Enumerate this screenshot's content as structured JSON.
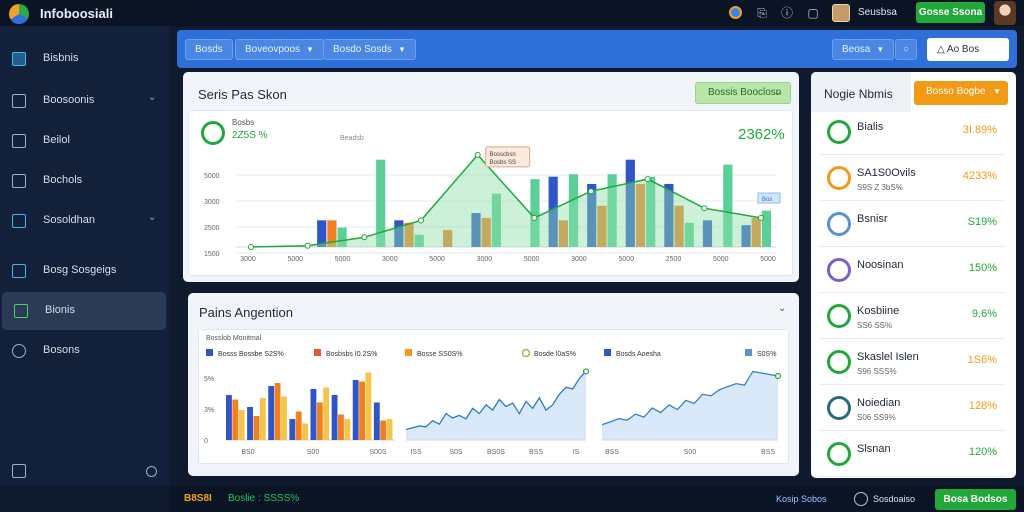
{
  "app": {
    "title": "Infoboosiali",
    "user_name": "Seusbsa",
    "cta_label": "Gosse Ssona"
  },
  "topbar": {
    "icons": [
      "notification-icon",
      "share-icon",
      "help-icon"
    ]
  },
  "sidebar": {
    "items": [
      {
        "label": "Bisbnis",
        "icon": "dashboard-icon",
        "active": false,
        "chevron": false
      },
      {
        "label": "Boosoonis",
        "icon": "list-icon",
        "active": false,
        "chevron": true
      },
      {
        "label": "Beilol",
        "icon": "edit-icon",
        "active": false,
        "chevron": false
      },
      {
        "label": "Bochols",
        "icon": "document-icon",
        "active": false,
        "chevron": false
      },
      {
        "label": "Sosoldhan",
        "icon": "network-icon",
        "active": false,
        "chevron": true
      },
      {
        "label": "Bosg Sosgeigs",
        "icon": "chart-icon",
        "active": false,
        "chevron": false
      },
      {
        "label": "Bionis",
        "icon": "grid-icon",
        "active": true,
        "chevron": false
      },
      {
        "label": "Bosons",
        "icon": "settings-icon",
        "active": false,
        "chevron": false
      }
    ]
  },
  "toolbar": {
    "btn1": "Bosds",
    "btn2": "Boveovpoos",
    "btn3": "Bosdo Sosds",
    "btn4": "Beosa",
    "btn5_label": "Ao Bos"
  },
  "main_panel": {
    "title": "Seris Pas Skon",
    "filter_label": "Bossis Booclosn",
    "kpi_label": "Bosbs",
    "kpi_value": "2Z5S %",
    "kpi_right": "2362%",
    "caption": "Beadsb",
    "tooltip_line1": "Bosscbsn",
    "tooltip_line2": "Bosbs SS",
    "legend_tag": "Bos"
  },
  "lower_panel": {
    "title": "Pains Angention",
    "caption": "Bosslob Monitmal",
    "legend": [
      {
        "label": "Bosss Bossbe",
        "value": "S2S%"
      },
      {
        "label": "Bosbsbs",
        "value": "I0.2S%"
      },
      {
        "label": "Bosse",
        "value": "SS0S%"
      },
      {
        "label": "Bosde",
        "value": "l0aS%"
      },
      {
        "label": "Bosds Aoesha",
        "value": ""
      },
      {
        "label": "",
        "value": "S0S%"
      }
    ],
    "bar_ticks": [
      "5%",
      "3%",
      "0"
    ],
    "bar_xlabels": [
      "BS0",
      "S00",
      "S00S"
    ],
    "area1_xlabels": [
      "ISS",
      "S0S",
      "BS0S",
      "BSS",
      "IS"
    ],
    "area2_xlabels": [
      "BSS",
      "S00",
      "BSS"
    ]
  },
  "right_panel": {
    "title": "Nogie Nbmis",
    "dropdown_label": "Bosso Bogbe",
    "rows": [
      {
        "name": "Bialis",
        "sub": "",
        "value": "3I.89%",
        "value_color": "#f39a15",
        "ring_color": "#22a83a"
      },
      {
        "name": "SA1S0Ovils",
        "sub": "S9S  Z 3bS%",
        "value": "4233%",
        "value_color": "#f39a15",
        "ring_color": "#f39a15"
      },
      {
        "name": "Bsnisr",
        "sub": "",
        "value": "S19%",
        "value_color": "#22a83a",
        "ring_color": "#5b8fd6"
      },
      {
        "name": "Noosinan",
        "sub": "",
        "value": "150%",
        "value_color": "#22a83a",
        "ring_color": "#7b5fc9"
      },
      {
        "name": "Kosbiine",
        "sub": "SS6 SS%",
        "value": "9.6%",
        "value_color": "#22a83a",
        "ring_color": "#22a83a"
      },
      {
        "name": "Skaslel Islen",
        "sub": "S96 SSS%",
        "value": "1S6%",
        "value_color": "#f39a15",
        "ring_color": "#22a83a"
      },
      {
        "name": "Noiedian",
        "sub": "S06 SS9%",
        "value": "128%",
        "value_color": "#f39a15",
        "ring_color": "#2b6b7a"
      },
      {
        "name": "Slsnan",
        "sub": "",
        "value": "120%",
        "value_color": "#22a83a",
        "ring_color": "#22a83a"
      }
    ]
  },
  "footer": {
    "left": "B8S8I",
    "left2": "Boslie : SSSS%",
    "link": "Kosip Sobos",
    "user": "Sosdoaiso",
    "button": "Bosa Bodsos"
  },
  "chart_data": [
    {
      "type": "bar",
      "title": "",
      "y_ticks": [
        "5000",
        "3000",
        "2500",
        "1500"
      ],
      "x_ticks": [
        "3000",
        "5000",
        "5000",
        "3000",
        "5000",
        "3000",
        "5000",
        "3000",
        "5000",
        "2500",
        "5000",
        "5000"
      ],
      "categories": [
        "g1",
        "g2",
        "g3",
        "g4",
        "g5",
        "g6",
        "g7",
        "g8",
        "g9",
        "g10",
        "g11",
        "g12",
        "g13",
        "g14"
      ],
      "series": [
        {
          "values": [
            0,
            0,
            1100,
            0,
            1100,
            0,
            1400,
            0,
            2900,
            2600,
            3600,
            2600,
            1100,
            900
          ],
          "color": "#2f55c8"
        },
        {
          "values": [
            0,
            0,
            1100,
            0,
            1000,
            700,
            1200,
            0,
            1100,
            1700,
            2600,
            1700,
            0,
            1200
          ],
          "color": "#f07f22"
        },
        {
          "values": [
            0,
            0,
            800,
            3600,
            500,
            0,
            2200,
            2800,
            3000,
            3000,
            2900,
            1000,
            3400,
            1500
          ],
          "color": "#5bcf98"
        }
      ],
      "trend": [
        0,
        50,
        400,
        1100,
        3800,
        1200,
        2300,
        2800,
        1600,
        1200
      ]
    },
    {
      "type": "bar",
      "title": "",
      "categories": [
        "c1",
        "c2",
        "c3",
        "c4",
        "c5",
        "c6",
        "c7",
        "c8"
      ],
      "series": [
        {
          "values": [
            3.0,
            2.2,
            3.6,
            1.4,
            3.4,
            3.0,
            4.0,
            2.5
          ],
          "color": "#2f55c8"
        },
        {
          "values": [
            2.7,
            1.6,
            3.8,
            1.9,
            2.5,
            1.7,
            3.9,
            1.3
          ],
          "color": "#f07f22"
        },
        {
          "values": [
            2.0,
            2.8,
            2.9,
            1.1,
            3.5,
            1.4,
            4.5,
            1.4
          ],
          "color": "#f5c44a"
        }
      ]
    },
    {
      "type": "area",
      "values": [
        12,
        14,
        16,
        15,
        22,
        18,
        30,
        25,
        28,
        24,
        36,
        30,
        40,
        34,
        46,
        38,
        42,
        30,
        44,
        36,
        48,
        34,
        40,
        52,
        60,
        58,
        70,
        78
      ],
      "color": "#2f78c8"
    },
    {
      "type": "area",
      "values": [
        20,
        24,
        28,
        26,
        34,
        30,
        42,
        36,
        46,
        40,
        52,
        48,
        60,
        58,
        66,
        70,
        74,
        72,
        90,
        88,
        86,
        84
      ],
      "color": "#3b82c4"
    }
  ]
}
